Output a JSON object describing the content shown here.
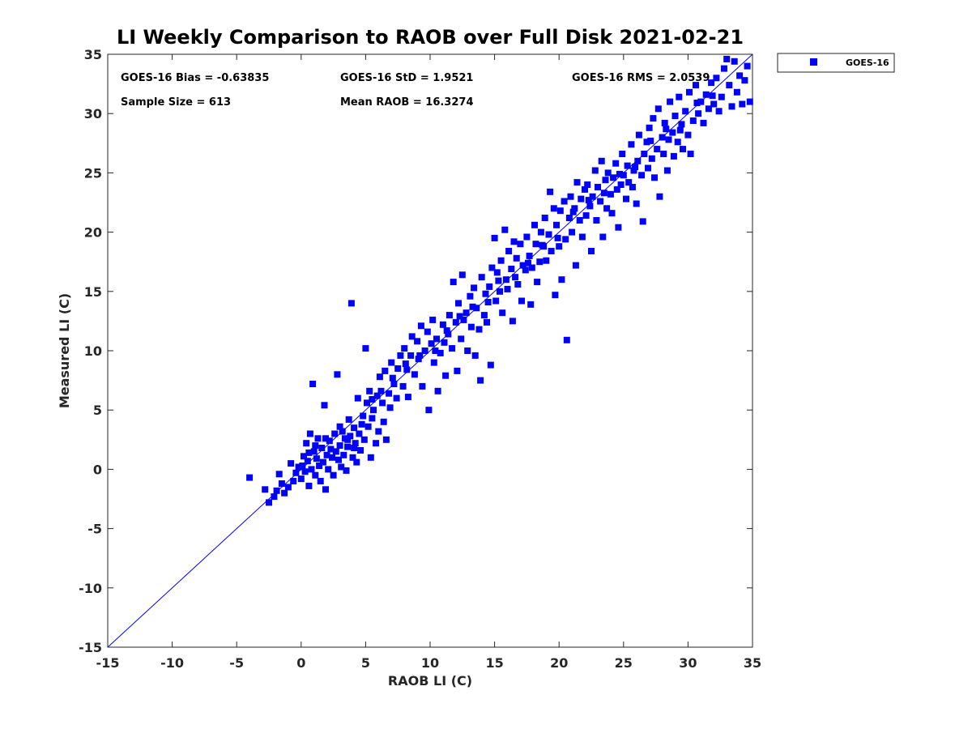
{
  "chart_data": {
    "type": "scatter",
    "title": "LI Weekly Comparison to RAOB over Full Disk 2021-02-21",
    "xlabel": "RAOB LI (C)",
    "ylabel": "Measured LI (C)",
    "xlim": [
      -15,
      35
    ],
    "ylim": [
      -15,
      35
    ],
    "xticks": [
      -15,
      -10,
      -5,
      0,
      5,
      10,
      15,
      20,
      25,
      30,
      35
    ],
    "yticks": [
      -15,
      -10,
      -5,
      0,
      5,
      10,
      15,
      20,
      25,
      30,
      35
    ],
    "grid": false,
    "legend_position": "outside-top-right",
    "reference_line": {
      "x": [
        -15,
        35
      ],
      "y": [
        -15,
        35
      ],
      "color": "#0000ff"
    },
    "annotations": [
      "GOES-16 Bias = -0.63835",
      "GOES-16 StD = 1.9521",
      "GOES-16 RMS = 2.0539",
      "Sample Size = 613",
      "Mean RAOB = 16.3274"
    ],
    "series": [
      {
        "name": "GOES-16",
        "color": "#0000ff",
        "marker": "square",
        "points": [
          [
            -4.0,
            -0.7
          ],
          [
            -2.8,
            -1.7
          ],
          [
            -2.5,
            -2.8
          ],
          [
            -2.1,
            -2.3
          ],
          [
            -1.9,
            -1.8
          ],
          [
            -1.7,
            -0.4
          ],
          [
            -1.5,
            -1.2
          ],
          [
            -1.3,
            -2.0
          ],
          [
            -1.0,
            -1.5
          ],
          [
            -0.8,
            0.5
          ],
          [
            -0.6,
            -1.0
          ],
          [
            -0.4,
            -0.3
          ],
          [
            -0.2,
            0.2
          ],
          [
            0.0,
            -0.8
          ],
          [
            0.2,
            1.1
          ],
          [
            0.3,
            -0.2
          ],
          [
            0.4,
            2.2
          ],
          [
            0.5,
            0.7
          ],
          [
            0.6,
            -1.4
          ],
          [
            0.7,
            3.0
          ],
          [
            0.8,
            0.0
          ],
          [
            0.9,
            7.2
          ],
          [
            1.0,
            1.5
          ],
          [
            1.1,
            -0.5
          ],
          [
            1.2,
            0.9
          ],
          [
            1.3,
            2.6
          ],
          [
            1.4,
            0.3
          ],
          [
            1.5,
            -1.0
          ],
          [
            1.6,
            1.8
          ],
          [
            1.7,
            0.6
          ],
          [
            1.8,
            5.4
          ],
          [
            1.9,
            -1.7
          ],
          [
            2.0,
            1.2
          ],
          [
            2.1,
            0.0
          ],
          [
            2.2,
            2.4
          ],
          [
            2.4,
            1.0
          ],
          [
            2.5,
            -0.5
          ],
          [
            2.6,
            3.0
          ],
          [
            2.7,
            1.5
          ],
          [
            2.8,
            8.0
          ],
          [
            2.9,
            0.8
          ],
          [
            3.0,
            2.0
          ],
          [
            3.1,
            0.2
          ],
          [
            3.2,
            3.2
          ],
          [
            3.3,
            1.2
          ],
          [
            3.4,
            2.6
          ],
          [
            3.5,
            -0.1
          ],
          [
            3.6,
            1.9
          ],
          [
            3.7,
            4.2
          ],
          [
            3.8,
            2.8
          ],
          [
            3.9,
            14.0
          ],
          [
            4.0,
            1.0
          ],
          [
            4.1,
            3.5
          ],
          [
            4.2,
            2.2
          ],
          [
            4.3,
            0.6
          ],
          [
            4.4,
            6.0
          ],
          [
            4.5,
            3.0
          ],
          [
            4.6,
            1.6
          ],
          [
            4.8,
            4.5
          ],
          [
            4.9,
            2.5
          ],
          [
            5.0,
            10.2
          ],
          [
            5.1,
            5.6
          ],
          [
            5.2,
            3.6
          ],
          [
            5.3,
            6.6
          ],
          [
            5.4,
            1.0
          ],
          [
            5.5,
            4.3
          ],
          [
            5.6,
            5.0
          ],
          [
            5.8,
            2.2
          ],
          [
            5.9,
            6.2
          ],
          [
            6.0,
            3.2
          ],
          [
            6.1,
            7.8
          ],
          [
            6.3,
            5.6
          ],
          [
            6.4,
            4.0
          ],
          [
            6.5,
            8.3
          ],
          [
            6.6,
            2.5
          ],
          [
            6.8,
            6.4
          ],
          [
            6.9,
            5.2
          ],
          [
            7.0,
            9.0
          ],
          [
            7.2,
            7.2
          ],
          [
            7.4,
            6.0
          ],
          [
            7.5,
            8.5
          ],
          [
            7.7,
            9.6
          ],
          [
            7.9,
            7.0
          ],
          [
            8.0,
            10.2
          ],
          [
            8.2,
            8.4
          ],
          [
            8.3,
            6.1
          ],
          [
            8.5,
            9.6
          ],
          [
            8.6,
            11.2
          ],
          [
            8.8,
            8.0
          ],
          [
            9.0,
            10.8
          ],
          [
            9.1,
            9.3
          ],
          [
            9.3,
            12.1
          ],
          [
            9.4,
            7.0
          ],
          [
            9.6,
            10.0
          ],
          [
            9.8,
            11.6
          ],
          [
            9.9,
            5.0
          ],
          [
            10.1,
            10.6
          ],
          [
            10.2,
            12.6
          ],
          [
            10.3,
            9.0
          ],
          [
            10.5,
            11.0
          ],
          [
            10.6,
            6.6
          ],
          [
            10.8,
            9.8
          ],
          [
            11.0,
            12.2
          ],
          [
            11.1,
            10.7
          ],
          [
            11.2,
            7.9
          ],
          [
            11.4,
            11.4
          ],
          [
            11.5,
            13.0
          ],
          [
            11.7,
            10.2
          ],
          [
            11.8,
            15.8
          ],
          [
            12.0,
            12.4
          ],
          [
            12.1,
            8.3
          ],
          [
            12.2,
            14.0
          ],
          [
            12.4,
            11.0
          ],
          [
            12.5,
            16.4
          ],
          [
            12.6,
            12.6
          ],
          [
            12.8,
            13.2
          ],
          [
            12.9,
            10.0
          ],
          [
            13.1,
            14.6
          ],
          [
            13.2,
            12.0
          ],
          [
            13.4,
            15.3
          ],
          [
            13.5,
            9.6
          ],
          [
            13.6,
            13.6
          ],
          [
            13.8,
            11.8
          ],
          [
            13.9,
            7.5
          ],
          [
            14.0,
            16.2
          ],
          [
            14.2,
            13.0
          ],
          [
            14.3,
            14.8
          ],
          [
            14.4,
            12.4
          ],
          [
            14.6,
            15.4
          ],
          [
            14.7,
            8.8
          ],
          [
            14.8,
            17.0
          ],
          [
            15.0,
            19.5
          ],
          [
            15.1,
            14.2
          ],
          [
            15.2,
            16.6
          ],
          [
            15.4,
            15.0
          ],
          [
            15.5,
            17.6
          ],
          [
            15.6,
            13.2
          ],
          [
            15.8,
            20.2
          ],
          [
            15.9,
            16.0
          ],
          [
            16.0,
            15.2
          ],
          [
            16.1,
            18.4
          ],
          [
            16.3,
            16.9
          ],
          [
            16.4,
            12.5
          ],
          [
            16.5,
            19.2
          ],
          [
            16.7,
            17.8
          ],
          [
            16.8,
            15.6
          ],
          [
            17.0,
            19.0
          ],
          [
            17.1,
            14.2
          ],
          [
            17.2,
            17.2
          ],
          [
            17.4,
            16.8
          ],
          [
            17.5,
            19.6
          ],
          [
            17.7,
            18.0
          ],
          [
            17.8,
            13.9
          ],
          [
            17.9,
            17.0
          ],
          [
            18.1,
            20.6
          ],
          [
            18.2,
            19.0
          ],
          [
            18.3,
            15.8
          ],
          [
            18.5,
            17.5
          ],
          [
            18.6,
            20.0
          ],
          [
            18.8,
            18.8
          ],
          [
            18.9,
            21.2
          ],
          [
            19.0,
            17.6
          ],
          [
            19.2,
            19.8
          ],
          [
            19.3,
            23.4
          ],
          [
            19.4,
            18.4
          ],
          [
            19.6,
            22.0
          ],
          [
            19.7,
            14.7
          ],
          [
            19.8,
            20.6
          ],
          [
            20.0,
            18.8
          ],
          [
            20.1,
            21.8
          ],
          [
            20.2,
            16.0
          ],
          [
            20.4,
            22.6
          ],
          [
            20.5,
            19.4
          ],
          [
            20.6,
            10.9
          ],
          [
            20.8,
            21.2
          ],
          [
            20.9,
            23.0
          ],
          [
            21.0,
            20.0
          ],
          [
            21.2,
            22.0
          ],
          [
            21.3,
            17.2
          ],
          [
            21.4,
            24.2
          ],
          [
            21.6,
            21.0
          ],
          [
            21.7,
            22.8
          ],
          [
            21.8,
            19.6
          ],
          [
            22.0,
            23.6
          ],
          [
            22.1,
            21.4
          ],
          [
            22.2,
            24.0
          ],
          [
            22.4,
            22.2
          ],
          [
            22.5,
            18.4
          ],
          [
            22.6,
            23.0
          ],
          [
            22.8,
            25.2
          ],
          [
            22.9,
            21.0
          ],
          [
            23.0,
            23.8
          ],
          [
            23.2,
            22.6
          ],
          [
            23.3,
            26.0
          ],
          [
            23.4,
            19.6
          ],
          [
            23.6,
            24.4
          ],
          [
            23.7,
            22.0
          ],
          [
            23.8,
            25.0
          ],
          [
            24.0,
            23.2
          ],
          [
            24.1,
            21.6
          ],
          [
            24.2,
            24.6
          ],
          [
            24.4,
            25.8
          ],
          [
            24.5,
            23.6
          ],
          [
            24.6,
            20.4
          ],
          [
            24.8,
            24.0
          ],
          [
            24.9,
            26.6
          ],
          [
            25.0,
            24.8
          ],
          [
            25.2,
            22.8
          ],
          [
            25.3,
            25.6
          ],
          [
            25.4,
            24.2
          ],
          [
            25.6,
            27.4
          ],
          [
            25.7,
            23.8
          ],
          [
            25.8,
            25.2
          ],
          [
            26.0,
            22.4
          ],
          [
            26.1,
            26.0
          ],
          [
            26.2,
            28.2
          ],
          [
            26.4,
            24.8
          ],
          [
            26.5,
            20.9
          ],
          [
            26.6,
            26.6
          ],
          [
            26.8,
            27.6
          ],
          [
            26.9,
            25.4
          ],
          [
            27.0,
            28.8
          ],
          [
            27.2,
            26.2
          ],
          [
            27.3,
            29.6
          ],
          [
            27.4,
            24.6
          ],
          [
            27.6,
            27.0
          ],
          [
            27.7,
            30.4
          ],
          [
            27.8,
            23.0
          ],
          [
            28.0,
            28.0
          ],
          [
            28.1,
            26.6
          ],
          [
            28.2,
            29.2
          ],
          [
            28.4,
            25.2
          ],
          [
            28.5,
            27.8
          ],
          [
            28.6,
            31.0
          ],
          [
            28.8,
            28.4
          ],
          [
            28.9,
            26.4
          ],
          [
            29.0,
            29.8
          ],
          [
            29.2,
            27.6
          ],
          [
            29.3,
            31.4
          ],
          [
            29.4,
            28.6
          ],
          [
            29.6,
            27.0
          ],
          [
            29.8,
            30.2
          ],
          [
            30.0,
            28.2
          ],
          [
            30.1,
            31.8
          ],
          [
            30.2,
            26.6
          ],
          [
            30.4,
            29.4
          ],
          [
            30.6,
            32.4
          ],
          [
            30.8,
            30.0
          ],
          [
            31.0,
            31.0
          ],
          [
            31.2,
            29.2
          ],
          [
            31.4,
            31.6
          ],
          [
            31.6,
            30.4
          ],
          [
            31.8,
            32.6
          ],
          [
            32.0,
            30.8
          ],
          [
            32.2,
            33.0
          ],
          [
            32.4,
            30.2
          ],
          [
            32.6,
            31.4
          ],
          [
            32.8,
            33.8
          ],
          [
            33.0,
            34.6
          ],
          [
            33.2,
            32.4
          ],
          [
            33.4,
            30.6
          ],
          [
            33.6,
            34.4
          ],
          [
            33.8,
            31.8
          ],
          [
            34.0,
            33.2
          ],
          [
            34.2,
            30.8
          ],
          [
            34.4,
            32.8
          ],
          [
            34.6,
            34.0
          ],
          [
            34.8,
            31.0
          ],
          [
            0.1,
            0.3
          ],
          [
            0.6,
            1.4
          ],
          [
            1.1,
            2.0
          ],
          [
            1.9,
            2.6
          ],
          [
            2.3,
            1.7
          ],
          [
            3.0,
            3.6
          ],
          [
            3.6,
            2.5
          ],
          [
            4.1,
            1.8
          ],
          [
            4.7,
            3.8
          ],
          [
            5.5,
            5.9
          ],
          [
            6.2,
            6.6
          ],
          [
            7.1,
            7.7
          ],
          [
            8.1,
            8.9
          ],
          [
            9.2,
            9.6
          ],
          [
            10.4,
            10.0
          ],
          [
            11.3,
            11.7
          ],
          [
            12.3,
            12.9
          ],
          [
            13.3,
            13.7
          ],
          [
            14.5,
            14.1
          ],
          [
            15.3,
            15.9
          ],
          [
            16.6,
            16.2
          ],
          [
            17.6,
            17.4
          ],
          [
            18.7,
            18.9
          ],
          [
            19.9,
            19.5
          ],
          [
            21.1,
            21.7
          ],
          [
            22.3,
            22.7
          ],
          [
            23.5,
            23.3
          ],
          [
            24.7,
            24.9
          ],
          [
            25.9,
            25.5
          ],
          [
            27.1,
            27.7
          ],
          [
            28.3,
            28.7
          ],
          [
            29.5,
            29.1
          ],
          [
            30.7,
            30.9
          ],
          [
            31.9,
            31.5
          ]
        ]
      }
    ]
  }
}
